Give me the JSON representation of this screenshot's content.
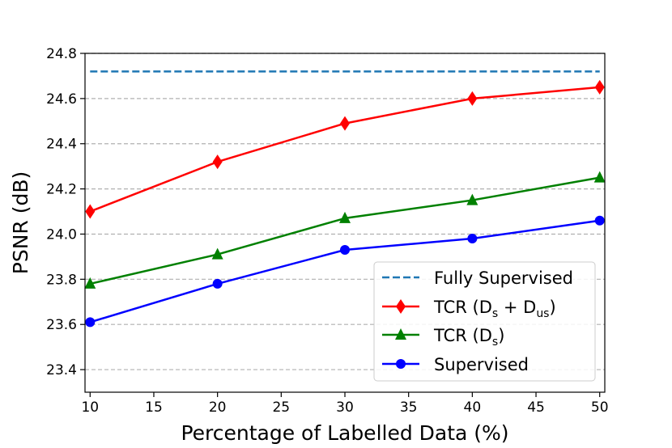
{
  "chart_data": {
    "type": "line",
    "title": "",
    "xlabel": "Percentage of Labelled Data (%)",
    "ylabel": "PSNR (dB)",
    "x": [
      10,
      20,
      30,
      40,
      50
    ],
    "xlim": [
      9.6,
      50.4
    ],
    "ylim": [
      23.3,
      24.8
    ],
    "xticks": [
      10,
      15,
      20,
      25,
      30,
      35,
      40,
      45,
      50
    ],
    "yticks": [
      23.4,
      23.6,
      23.8,
      24.0,
      24.2,
      24.4,
      24.6,
      24.8
    ],
    "xtick_labels": [
      "10",
      "15",
      "20",
      "25",
      "30",
      "35",
      "40",
      "45",
      "50"
    ],
    "ytick_labels": [
      "23.4",
      "23.6",
      "23.8",
      "24.0",
      "24.2",
      "24.4",
      "24.6",
      "24.8"
    ],
    "grid": "horizontal dashed",
    "legend_position": "lower-right",
    "series": [
      {
        "name": "Fully Supervised",
        "color": "#1f77b4",
        "style": "dashed",
        "marker": "none",
        "values": [
          24.72,
          24.72,
          24.72,
          24.72,
          24.72
        ]
      },
      {
        "name": "TCR (Ds + Dus)",
        "color": "#ff0000",
        "style": "solid",
        "marker": "diamond",
        "values": [
          24.1,
          24.32,
          24.49,
          24.6,
          24.65
        ]
      },
      {
        "name": "TCR (Ds)",
        "color": "#008000",
        "style": "solid",
        "marker": "triangle",
        "values": [
          23.78,
          23.91,
          24.07,
          24.15,
          24.25
        ]
      },
      {
        "name": "Supervised",
        "color": "#0000ff",
        "style": "solid",
        "marker": "circle",
        "values": [
          23.61,
          23.78,
          23.93,
          23.98,
          24.06
        ]
      }
    ],
    "legend": {
      "fully": "Fully Supervised",
      "tcr_both_prefix": "TCR (D",
      "tcr_both_s": "s",
      "tcr_both_mid": " + D",
      "tcr_both_us": "us",
      "tcr_both_suffix": ")",
      "tcr_s_prefix": "TCR (D",
      "tcr_s_s": "s",
      "tcr_s_suffix": ")",
      "supervised": "Supervised"
    }
  }
}
